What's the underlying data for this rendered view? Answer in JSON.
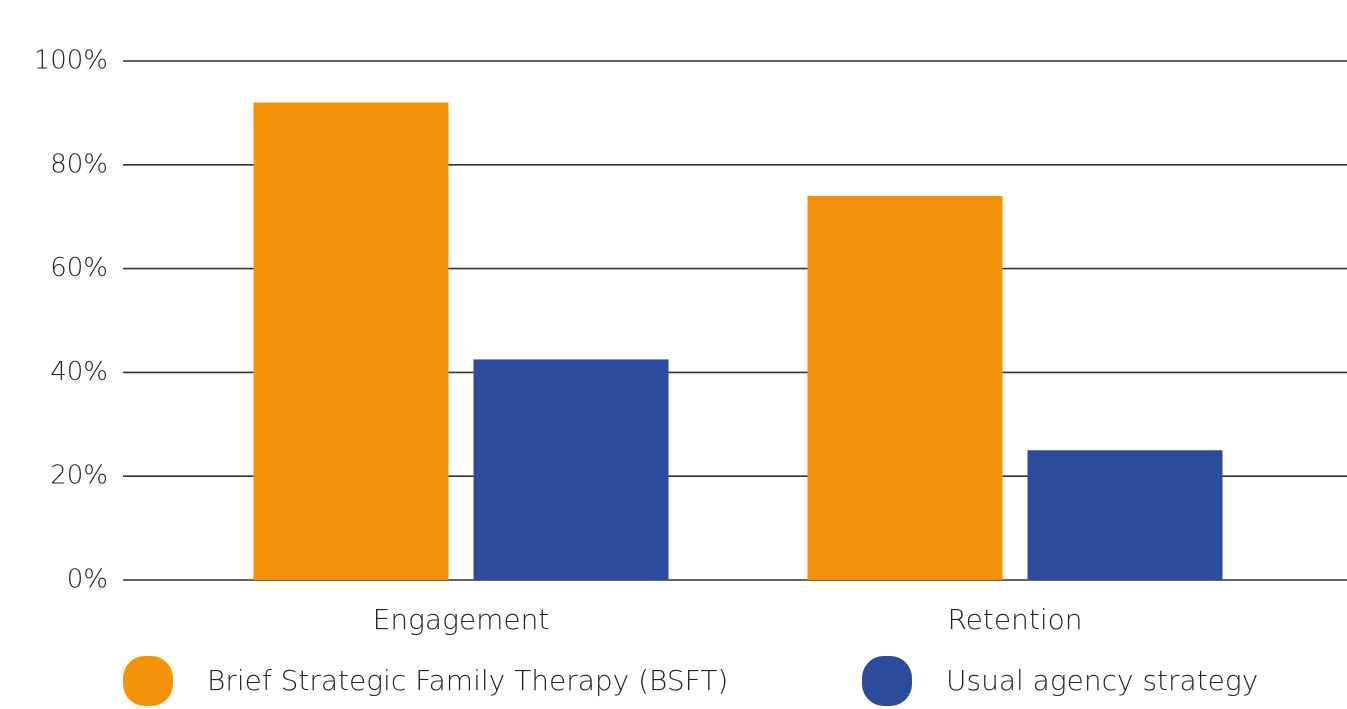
{
  "chart_data": {
    "type": "bar",
    "categories": [
      "Engagement",
      "Retention"
    ],
    "series": [
      {
        "name": "Brief Strategic Family Therapy (BSFT)",
        "color": "#f39207",
        "values": [
          92,
          74
        ]
      },
      {
        "name": "Usual agency strategy",
        "color": "#2b4c9b",
        "values": [
          42.5,
          25
        ]
      }
    ],
    "ylim": [
      0,
      100
    ],
    "yticks": [
      {
        "value": 0,
        "label": "0%"
      },
      {
        "value": 20,
        "label": "20%"
      },
      {
        "value": 40,
        "label": "40%"
      },
      {
        "value": 60,
        "label": "60%"
      },
      {
        "value": 80,
        "label": "80%"
      },
      {
        "value": 100,
        "label": "100%"
      }
    ],
    "grid": true,
    "legend": "bottom"
  }
}
